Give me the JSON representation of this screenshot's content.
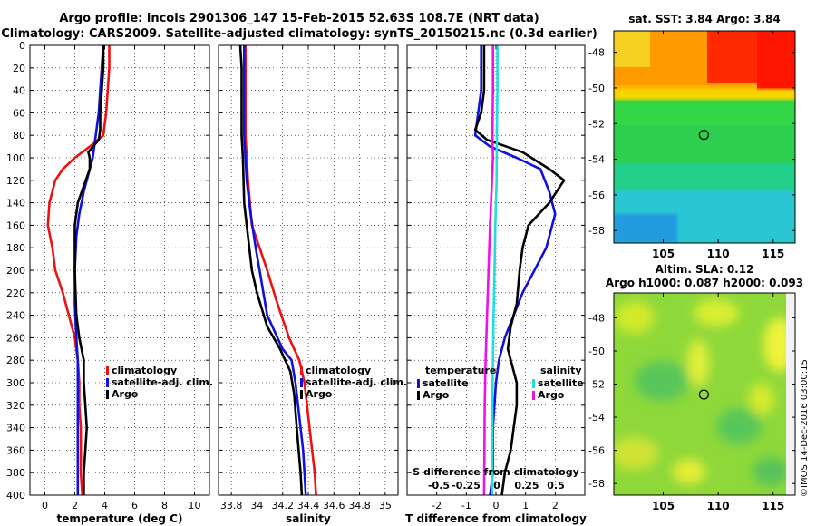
{
  "header": {
    "title_line1": "Argo profile: incois 2901306_147 15-Feb-2015 52.63S 108.7E (NRT data)",
    "title_line2": "Climatology: CARS2009. Satellite-adjusted climatology: synTS_20150215.nc (0.3d earlier)"
  },
  "colors": {
    "red": "#ee1111",
    "blue": "#1111dd",
    "black": "#000000",
    "cyan": "#22dddd",
    "magenta": "#ee11ee"
  },
  "chart_data": [
    {
      "type": "line",
      "name": "temperature",
      "xlabel": "temperature (deg C)",
      "xlim": [
        -1,
        11
      ],
      "ylim": [
        0,
        400
      ],
      "y_inverted": true,
      "x_ticks": [
        0,
        2,
        4,
        6,
        8,
        10
      ],
      "x_tick_labels": [
        "0",
        "2",
        "4",
        "6",
        "8",
        "10"
      ],
      "y_ticks": [
        0,
        20,
        40,
        60,
        80,
        100,
        120,
        140,
        160,
        180,
        200,
        220,
        240,
        260,
        280,
        300,
        320,
        340,
        360,
        380,
        400
      ],
      "y_tick_labels": [
        "0",
        "20",
        "40",
        "60",
        "80",
        "100",
        "120",
        "140",
        "160",
        "180",
        "200",
        "220",
        "240",
        "260",
        "280",
        "300",
        "320",
        "340",
        "360",
        "380",
        "400"
      ],
      "grid": true,
      "legend": [
        "climatology",
        "satellite-adj. clim.",
        "Argo"
      ],
      "series": [
        {
          "name": "climatology",
          "color": "red",
          "points": [
            [
              4.3,
              0
            ],
            [
              4.3,
              20
            ],
            [
              4.2,
              40
            ],
            [
              4.1,
              60
            ],
            [
              3.9,
              80
            ],
            [
              3.0,
              90
            ],
            [
              2.0,
              100
            ],
            [
              1.2,
              110
            ],
            [
              0.7,
              120
            ],
            [
              0.3,
              140
            ],
            [
              0.2,
              160
            ],
            [
              0.5,
              180
            ],
            [
              0.7,
              200
            ],
            [
              1.2,
              220
            ],
            [
              1.6,
              240
            ],
            [
              2.0,
              260
            ],
            [
              2.2,
              280
            ],
            [
              2.3,
              300
            ],
            [
              2.3,
              320
            ],
            [
              2.4,
              340
            ],
            [
              2.4,
              360
            ],
            [
              2.4,
              380
            ],
            [
              2.5,
              400
            ]
          ]
        },
        {
          "name": "satellite-adj. clim.",
          "color": "blue",
          "points": [
            [
              3.9,
              0
            ],
            [
              3.8,
              20
            ],
            [
              3.7,
              40
            ],
            [
              3.6,
              60
            ],
            [
              3.4,
              80
            ],
            [
              3.2,
              100
            ],
            [
              3.0,
              110
            ],
            [
              2.6,
              130
            ],
            [
              2.3,
              150
            ],
            [
              2.1,
              170
            ],
            [
              2.0,
              200
            ],
            [
              2.0,
              230
            ],
            [
              2.1,
              260
            ],
            [
              2.2,
              280
            ],
            [
              2.2,
              300
            ],
            [
              2.2,
              320
            ],
            [
              2.2,
              340
            ],
            [
              2.2,
              360
            ],
            [
              2.2,
              380
            ],
            [
              2.2,
              400
            ]
          ]
        },
        {
          "name": "Argo",
          "color": "black",
          "points": [
            [
              3.9,
              0
            ],
            [
              3.9,
              20
            ],
            [
              3.8,
              40
            ],
            [
              3.7,
              60
            ],
            [
              3.7,
              75
            ],
            [
              3.6,
              84
            ],
            [
              2.9,
              95
            ],
            [
              3.0,
              100
            ],
            [
              3.0,
              110
            ],
            [
              2.6,
              125
            ],
            [
              2.2,
              140
            ],
            [
              2.0,
              160
            ],
            [
              2.0,
              180
            ],
            [
              2.0,
              200
            ],
            [
              2.1,
              240
            ],
            [
              2.3,
              260
            ],
            [
              2.6,
              280
            ],
            [
              2.6,
              300
            ],
            [
              2.7,
              320
            ],
            [
              2.8,
              340
            ],
            [
              2.7,
              360
            ],
            [
              2.6,
              380
            ],
            [
              2.6,
              400
            ]
          ]
        }
      ]
    },
    {
      "type": "line",
      "name": "salinity",
      "xlabel": "salinity",
      "xlim": [
        33.7,
        35.1
      ],
      "ylim": [
        0,
        400
      ],
      "y_inverted": true,
      "x_ticks": [
        33.8,
        34.0,
        34.2,
        34.4,
        34.6,
        34.8,
        35.0
      ],
      "x_tick_labels": [
        "33.8",
        "34",
        "34.2",
        "34.4",
        "34.6",
        "34.8",
        "35"
      ],
      "grid": true,
      "legend": [
        "climatology",
        "satellite-adj. clim.",
        "Argo"
      ],
      "series": [
        {
          "name": "climatology",
          "color": "red",
          "points": [
            [
              33.91,
              0
            ],
            [
              33.91,
              40
            ],
            [
              33.91,
              80
            ],
            [
              33.93,
              120
            ],
            [
              33.96,
              160
            ],
            [
              34.02,
              180
            ],
            [
              34.08,
              200
            ],
            [
              34.16,
              230
            ],
            [
              34.25,
              260
            ],
            [
              34.33,
              280
            ],
            [
              34.37,
              300
            ],
            [
              34.39,
              320
            ],
            [
              34.41,
              340
            ],
            [
              34.43,
              360
            ],
            [
              34.45,
              380
            ],
            [
              34.46,
              400
            ]
          ]
        },
        {
          "name": "satellite-adj. clim.",
          "color": "blue",
          "points": [
            [
              33.9,
              0
            ],
            [
              33.9,
              40
            ],
            [
              33.9,
              80
            ],
            [
              33.92,
              120
            ],
            [
              33.95,
              150
            ],
            [
              33.99,
              180
            ],
            [
              34.02,
              200
            ],
            [
              34.08,
              240
            ],
            [
              34.2,
              270
            ],
            [
              34.27,
              280
            ],
            [
              34.3,
              300
            ],
            [
              34.32,
              320
            ],
            [
              34.34,
              340
            ],
            [
              34.36,
              360
            ],
            [
              34.37,
              380
            ],
            [
              34.38,
              400
            ]
          ]
        },
        {
          "name": "Argo",
          "color": "black",
          "points": [
            [
              33.87,
              0
            ],
            [
              33.88,
              20
            ],
            [
              33.88,
              60
            ],
            [
              33.88,
              80
            ],
            [
              33.89,
              100
            ],
            [
              33.9,
              140
            ],
            [
              33.92,
              160
            ],
            [
              33.96,
              200
            ],
            [
              34.0,
              220
            ],
            [
              34.08,
              250
            ],
            [
              34.18,
              270
            ],
            [
              34.26,
              290
            ],
            [
              34.29,
              310
            ],
            [
              34.31,
              340
            ],
            [
              34.34,
              380
            ],
            [
              34.35,
              400
            ]
          ]
        }
      ]
    },
    {
      "type": "line",
      "name": "difference from climatology",
      "xlabel": "T difference from climatology",
      "xlim": [
        -3,
        3
      ],
      "ylim": [
        0,
        400
      ],
      "y_inverted": true,
      "x_ticks": [
        -2,
        -1,
        0,
        1,
        2
      ],
      "x_tick_labels": [
        "-2",
        "-1",
        "0",
        "1",
        "2"
      ],
      "s_axis_label": "S difference from climatology",
      "s_tick_labels": [
        "-0.5",
        "-0.25",
        "0",
        "0.25",
        "0.5"
      ],
      "grid": true,
      "legend_temperature_title": "temperature",
      "legend_temperature": [
        "satellite",
        "Argo"
      ],
      "legend_salinity_title": "salinity",
      "legend_salinity": [
        "satellite",
        "Argo"
      ],
      "series": [
        {
          "name": "temperature satellite",
          "color": "blue",
          "points": [
            [
              -0.5,
              0
            ],
            [
              -0.5,
              20
            ],
            [
              -0.5,
              40
            ],
            [
              -0.6,
              60
            ],
            [
              -0.7,
              80
            ],
            [
              -0.2,
              90
            ],
            [
              0.7,
              100
            ],
            [
              1.5,
              110
            ],
            [
              1.8,
              130
            ],
            [
              2.0,
              150
            ],
            [
              1.7,
              180
            ],
            [
              1.3,
              200
            ],
            [
              0.9,
              220
            ],
            [
              0.6,
              240
            ],
            [
              0.3,
              260
            ],
            [
              0.1,
              280
            ],
            [
              0.0,
              300
            ],
            [
              -0.1,
              340
            ],
            [
              -0.1,
              380
            ],
            [
              -0.2,
              400
            ]
          ]
        },
        {
          "name": "temperature Argo",
          "color": "black",
          "points": [
            [
              -0.4,
              0
            ],
            [
              -0.4,
              20
            ],
            [
              -0.4,
              40
            ],
            [
              -0.5,
              60
            ],
            [
              -0.7,
              75
            ],
            [
              -0.3,
              84
            ],
            [
              0.9,
              95
            ],
            [
              1.8,
              110
            ],
            [
              2.3,
              120
            ],
            [
              1.8,
              140
            ],
            [
              1.1,
              160
            ],
            [
              0.9,
              180
            ],
            [
              0.8,
              200
            ],
            [
              0.7,
              230
            ],
            [
              0.5,
              250
            ],
            [
              0.4,
              270
            ],
            [
              0.6,
              290
            ],
            [
              0.7,
              300
            ],
            [
              0.7,
              320
            ],
            [
              0.6,
              340
            ],
            [
              0.5,
              360
            ],
            [
              0.3,
              380
            ],
            [
              0.2,
              400
            ]
          ]
        },
        {
          "name": "salinity satellite",
          "color": "cyan",
          "points": [
            [
              0.05,
              0
            ],
            [
              0.05,
              40
            ],
            [
              0.03,
              80
            ],
            [
              0.02,
              120
            ],
            [
              -0.02,
              160
            ],
            [
              -0.05,
              200
            ],
            [
              -0.08,
              240
            ],
            [
              -0.1,
              280
            ],
            [
              -0.12,
              320
            ],
            [
              -0.12,
              360
            ],
            [
              -0.13,
              400
            ]
          ]
        },
        {
          "name": "salinity Argo",
          "color": "magenta",
          "points": [
            [
              -0.1,
              0
            ],
            [
              -0.1,
              40
            ],
            [
              -0.12,
              80
            ],
            [
              -0.1,
              100
            ],
            [
              -0.15,
              130
            ],
            [
              -0.2,
              160
            ],
            [
              -0.25,
              200
            ],
            [
              -0.3,
              240
            ],
            [
              -0.35,
              280
            ],
            [
              -0.38,
              320
            ],
            [
              -0.39,
              360
            ],
            [
              -0.4,
              400
            ]
          ]
        }
      ]
    },
    {
      "type": "heatmap",
      "name": "satellite SST map",
      "title": "sat. SST: 3.84 Argo: 3.84",
      "x_ticks": [
        105,
        110,
        115
      ],
      "x_tick_labels": [
        "105",
        "110",
        "115"
      ],
      "y_ticks": [
        -48,
        -50,
        -52,
        -54,
        -56,
        -58
      ],
      "y_tick_labels": [
        "-48",
        "-50",
        "-52",
        "-54",
        "-56",
        "-58"
      ],
      "xlim": [
        100.5,
        117
      ],
      "ylim": [
        -58.7,
        -46.8
      ],
      "marker": [
        108.7,
        -52.63
      ]
    },
    {
      "type": "heatmap",
      "name": "altimetry SLA map",
      "title_line1": "Altim. SLA: 0.12",
      "title_line2": "Argo h1000: 0.087 h2000: 0.093",
      "x_ticks": [
        105,
        110,
        115
      ],
      "x_tick_labels": [
        "105",
        "110",
        "115"
      ],
      "y_ticks": [
        -48,
        -50,
        -52,
        -54,
        -56,
        -58
      ],
      "y_tick_labels": [
        "-48",
        "-50",
        "-52",
        "-54",
        "-56",
        "-58"
      ],
      "xlim": [
        100.5,
        117
      ],
      "ylim": [
        -58.7,
        -46.5
      ],
      "marker": [
        108.7,
        -52.63
      ],
      "credit": "©IMOS 14-Dec-2016 03:00:15"
    }
  ]
}
